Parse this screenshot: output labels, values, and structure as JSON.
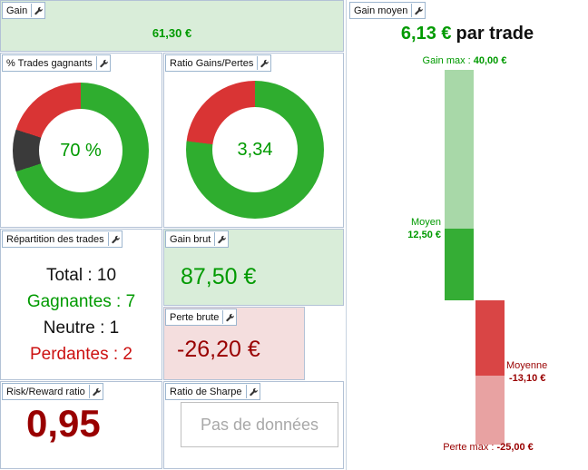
{
  "panels": {
    "gain": {
      "title": "Gain",
      "value": "61,30 €"
    },
    "pct_trades": {
      "title": "% Trades gagnants"
    },
    "ratio_gains_pertes": {
      "title": "Ratio Gains/Pertes"
    },
    "repartition": {
      "title": "Répartition des trades",
      "rows": [
        {
          "text": "Total : 10"
        },
        {
          "text": "Gagnantes : 7"
        },
        {
          "text": "Neutre : 1"
        },
        {
          "text": "Perdantes : 2"
        }
      ]
    },
    "gain_brut": {
      "title": "Gain brut",
      "value": "87,50 €"
    },
    "perte_brute": {
      "title": "Perte brute",
      "value": "-26,20 €"
    },
    "risk_reward": {
      "title": "Risk/Reward ratio",
      "value": "0,95"
    },
    "ratio_sharpe": {
      "title": "Ratio de Sharpe",
      "empty_message": "Pas de données"
    },
    "gain_moyen": {
      "title": "Gain moyen",
      "value": "6,13 €",
      "suffix": "par trade"
    }
  },
  "colors": {
    "gain_green": "#009a00",
    "loss_red": "#990000",
    "chart_green": "#2fad2f",
    "chart_red": "#d93434",
    "chart_dark": "#3a3a3a",
    "bg_green": "#d9edd9",
    "bg_red": "#f4dede"
  },
  "chart_data": [
    {
      "type": "pie",
      "subtype": "donut",
      "title": "% Trades gagnants",
      "center_label": "70 %",
      "segments": [
        {
          "label": "gagnants",
          "value": 70,
          "color": "#2fad2f"
        },
        {
          "label": "neutres",
          "value": 10,
          "color": "#3a3a3a"
        },
        {
          "label": "perdants",
          "value": 20,
          "color": "#d93434"
        }
      ]
    },
    {
      "type": "pie",
      "subtype": "donut",
      "title": "Ratio Gains/Pertes",
      "center_label": "3,34",
      "segments": [
        {
          "label": "gains",
          "value": 77,
          "color": "#2fad2f"
        },
        {
          "label": "pertes",
          "value": 23,
          "color": "#d93434"
        }
      ]
    },
    {
      "type": "bar",
      "subtype": "waterfall",
      "title": "Gain moyen par trade",
      "ylim": [
        -25,
        40
      ],
      "segments": [
        {
          "from": 40,
          "to": 12.5,
          "color": "#a8d8a8",
          "column": "gain",
          "label": "gain max a gain moyen"
        },
        {
          "from": 12.5,
          "to": 0,
          "color": "#35ad35",
          "column": "gain",
          "label": "gain moyen a zero"
        },
        {
          "from": 0,
          "to": -13.1,
          "color": "#d94545",
          "column": "perte",
          "label": "zero a perte moyenne"
        },
        {
          "from": -13.1,
          "to": -25,
          "color": "#e8a2a2",
          "column": "perte",
          "label": "perte moyenne a perte max"
        }
      ],
      "annotations": {
        "gain_max_label": "Gain max :",
        "gain_max_value": "40,00 €",
        "moyen_label": "Moyen",
        "moyen_value": "12,50 €",
        "moyenne_label": "Moyenne",
        "moyenne_value": "-13,10 €",
        "perte_max_label": "Perte max :",
        "perte_max_value": "-25,00 €"
      }
    }
  ]
}
